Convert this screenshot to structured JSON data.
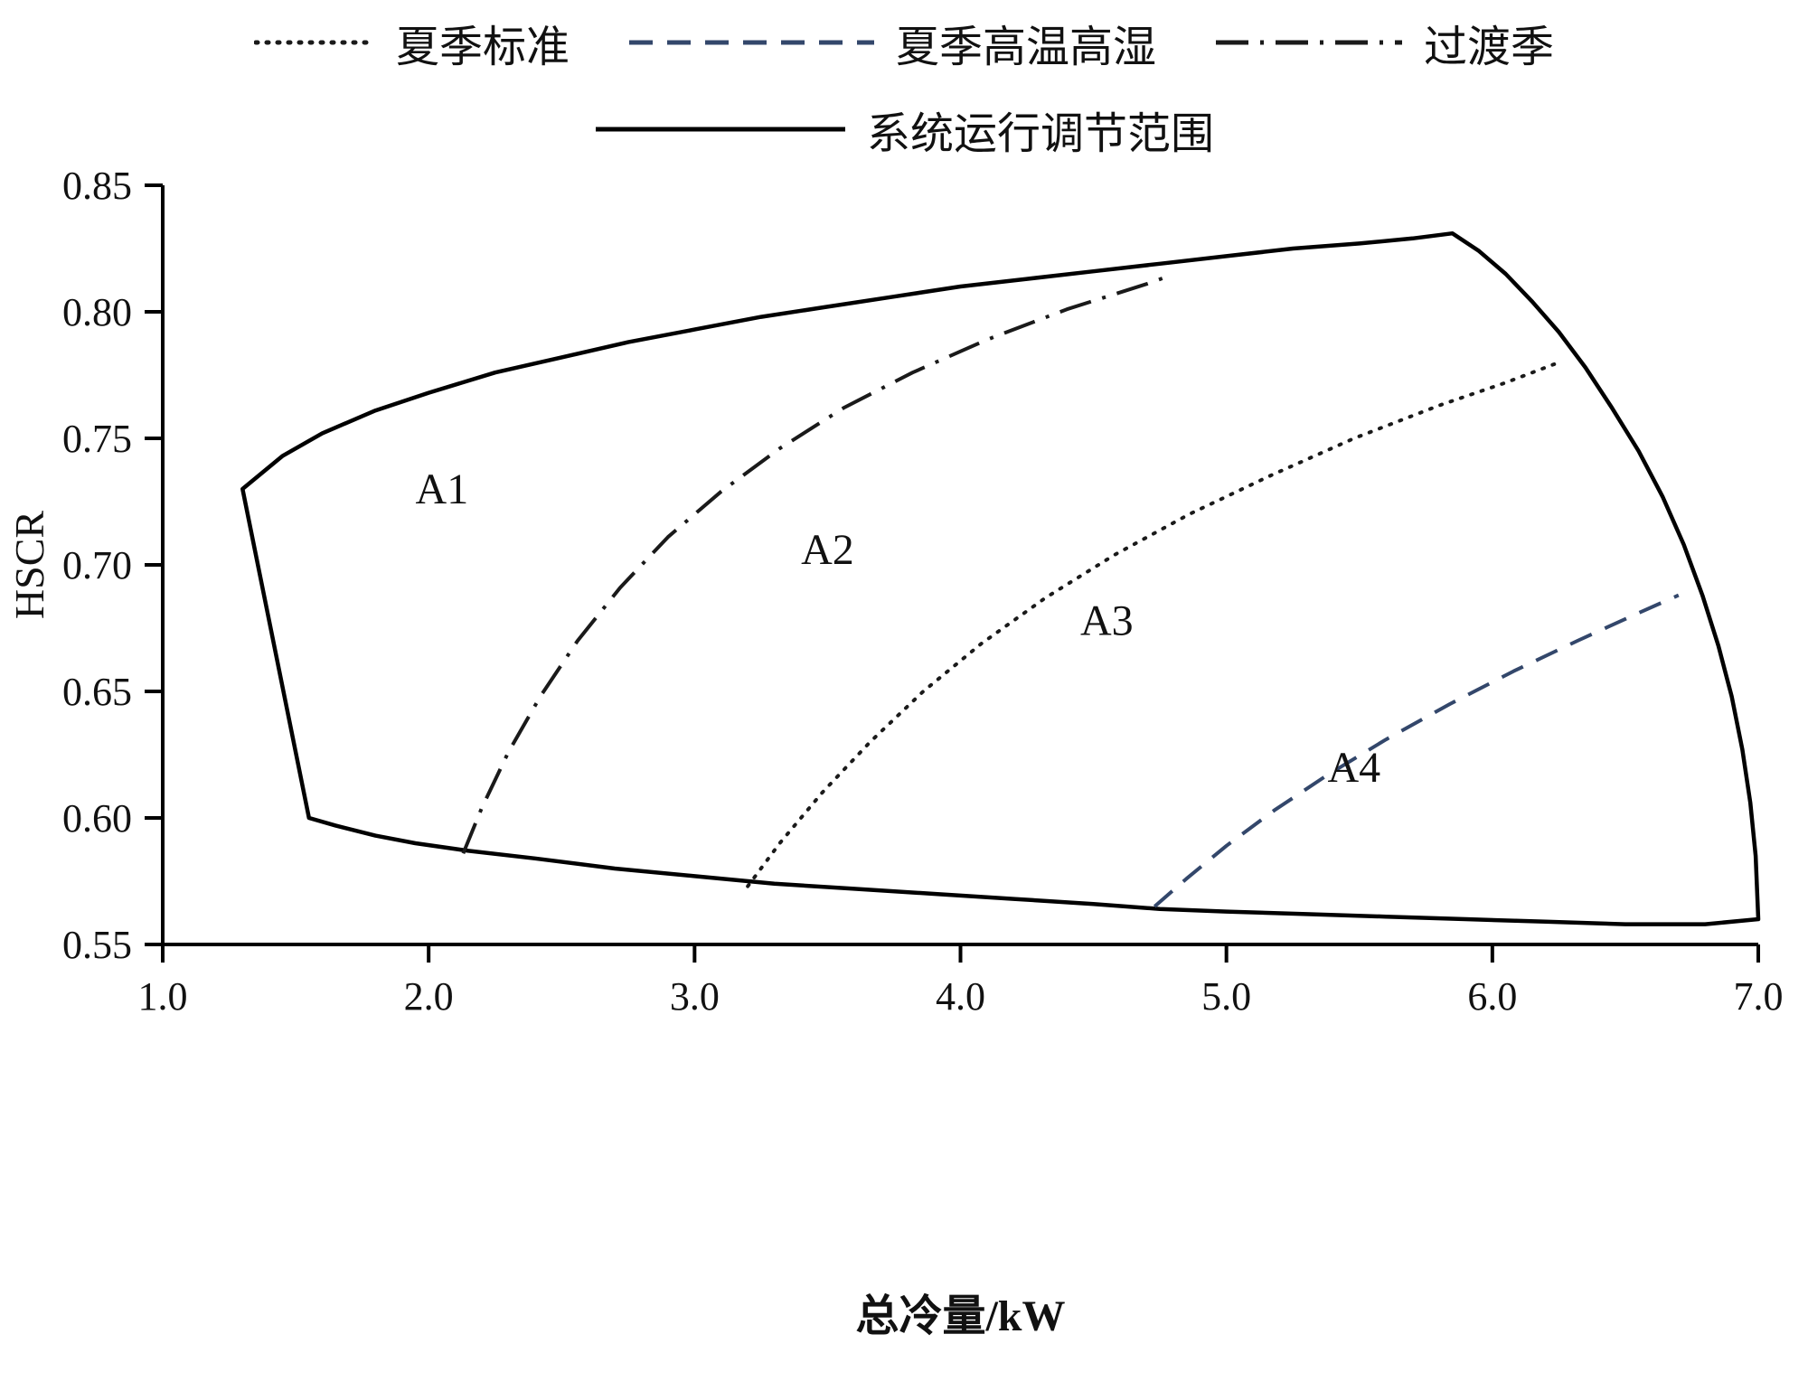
{
  "figure": {
    "background": "#ffffff",
    "axis_color": "#000000"
  },
  "chart_data": {
    "type": "line",
    "title": "",
    "xlabel": "总冷量/kW",
    "ylabel": "HSCR",
    "xlim": [
      1.0,
      7.0
    ],
    "ylim": [
      0.55,
      0.85
    ],
    "grid": false,
    "legend_position": "top-center-two-rows",
    "xticks": [
      {
        "v": 1.0,
        "label": "1.0"
      },
      {
        "v": 2.0,
        "label": "2.0"
      },
      {
        "v": 3.0,
        "label": "3.0"
      },
      {
        "v": 4.0,
        "label": "4.0"
      },
      {
        "v": 5.0,
        "label": "5.0"
      },
      {
        "v": 6.0,
        "label": "6.0"
      },
      {
        "v": 7.0,
        "label": "7.0"
      }
    ],
    "yticks": [
      {
        "v": 0.55,
        "label": "0.55"
      },
      {
        "v": 0.6,
        "label": "0.60"
      },
      {
        "v": 0.65,
        "label": "0.65"
      },
      {
        "v": 0.7,
        "label": "0.70"
      },
      {
        "v": 0.75,
        "label": "0.75"
      },
      {
        "v": 0.8,
        "label": "0.80"
      },
      {
        "v": 0.85,
        "label": "0.85"
      }
    ],
    "legend_rows": [
      [
        0,
        1,
        2
      ],
      [
        3
      ]
    ],
    "series": [
      {
        "key": "summer-standard",
        "name": "夏季标准",
        "style": "dotted",
        "color": "#1a1a1a",
        "width": 4,
        "closed": false,
        "points": [
          [
            3.2,
            0.573
          ],
          [
            3.32,
            0.59
          ],
          [
            3.48,
            0.61
          ],
          [
            3.66,
            0.63
          ],
          [
            3.86,
            0.65
          ],
          [
            4.08,
            0.669
          ],
          [
            4.32,
            0.687
          ],
          [
            4.58,
            0.704
          ],
          [
            4.86,
            0.72
          ],
          [
            5.16,
            0.735
          ],
          [
            5.48,
            0.75
          ],
          [
            5.8,
            0.763
          ],
          [
            6.05,
            0.772
          ],
          [
            6.25,
            0.78
          ]
        ]
      },
      {
        "key": "summer-hot-humid",
        "name": "夏季高温高湿",
        "style": "dashed",
        "color": "#33476b",
        "width": 4,
        "closed": false,
        "points": [
          [
            4.73,
            0.565
          ],
          [
            4.85,
            0.576
          ],
          [
            5.0,
            0.589
          ],
          [
            5.18,
            0.603
          ],
          [
            5.38,
            0.617
          ],
          [
            5.6,
            0.631
          ],
          [
            5.84,
            0.645
          ],
          [
            6.08,
            0.658
          ],
          [
            6.32,
            0.67
          ],
          [
            6.55,
            0.681
          ],
          [
            6.7,
            0.688
          ]
        ]
      },
      {
        "key": "transition-season",
        "name": "过渡季",
        "style": "dashdot",
        "color": "#1a1a1a",
        "width": 4,
        "closed": false,
        "points": [
          [
            2.13,
            0.586
          ],
          [
            2.2,
            0.604
          ],
          [
            2.3,
            0.626
          ],
          [
            2.42,
            0.648
          ],
          [
            2.56,
            0.67
          ],
          [
            2.72,
            0.691
          ],
          [
            2.9,
            0.711
          ],
          [
            3.1,
            0.729
          ],
          [
            3.32,
            0.746
          ],
          [
            3.56,
            0.762
          ],
          [
            3.82,
            0.776
          ],
          [
            4.1,
            0.789
          ],
          [
            4.4,
            0.801
          ],
          [
            4.7,
            0.811
          ],
          [
            4.78,
            0.814
          ]
        ]
      },
      {
        "key": "operating-range",
        "name": "系统运行调节范围",
        "style": "solid",
        "color": "#000000",
        "width": 4.5,
        "closed": true,
        "points": [
          [
            1.3,
            0.73
          ],
          [
            1.45,
            0.743
          ],
          [
            1.6,
            0.752
          ],
          [
            1.8,
            0.761
          ],
          [
            2.0,
            0.768
          ],
          [
            2.25,
            0.776
          ],
          [
            2.5,
            0.782
          ],
          [
            2.75,
            0.788
          ],
          [
            3.0,
            0.793
          ],
          [
            3.25,
            0.798
          ],
          [
            3.5,
            0.802
          ],
          [
            3.75,
            0.806
          ],
          [
            4.0,
            0.81
          ],
          [
            4.25,
            0.813
          ],
          [
            4.5,
            0.816
          ],
          [
            4.75,
            0.819
          ],
          [
            5.0,
            0.822
          ],
          [
            5.25,
            0.825
          ],
          [
            5.5,
            0.827
          ],
          [
            5.7,
            0.829
          ],
          [
            5.85,
            0.831
          ],
          [
            5.95,
            0.824
          ],
          [
            6.05,
            0.815
          ],
          [
            6.15,
            0.804
          ],
          [
            6.25,
            0.792
          ],
          [
            6.35,
            0.778
          ],
          [
            6.45,
            0.762
          ],
          [
            6.55,
            0.745
          ],
          [
            6.64,
            0.727
          ],
          [
            6.72,
            0.708
          ],
          [
            6.79,
            0.688
          ],
          [
            6.85,
            0.668
          ],
          [
            6.9,
            0.648
          ],
          [
            6.94,
            0.627
          ],
          [
            6.97,
            0.606
          ],
          [
            6.99,
            0.585
          ],
          [
            7.0,
            0.56
          ],
          [
            6.8,
            0.558
          ],
          [
            6.5,
            0.558
          ],
          [
            6.2,
            0.559
          ],
          [
            5.9,
            0.56
          ],
          [
            5.6,
            0.561
          ],
          [
            5.3,
            0.562
          ],
          [
            5.0,
            0.563
          ],
          [
            4.75,
            0.564
          ],
          [
            4.5,
            0.566
          ],
          [
            4.2,
            0.568
          ],
          [
            3.9,
            0.57
          ],
          [
            3.6,
            0.572
          ],
          [
            3.3,
            0.574
          ],
          [
            3.0,
            0.577
          ],
          [
            2.7,
            0.58
          ],
          [
            2.4,
            0.584
          ],
          [
            2.15,
            0.587
          ],
          [
            1.95,
            0.59
          ],
          [
            1.8,
            0.593
          ],
          [
            1.65,
            0.597
          ],
          [
            1.55,
            0.6
          ]
        ]
      }
    ],
    "region_labels": [
      {
        "text": "A1",
        "x": 2.05,
        "y": 0.73
      },
      {
        "text": "A2",
        "x": 3.5,
        "y": 0.706
      },
      {
        "text": "A3",
        "x": 4.55,
        "y": 0.678
      },
      {
        "text": "A4",
        "x": 5.48,
        "y": 0.62
      }
    ]
  }
}
